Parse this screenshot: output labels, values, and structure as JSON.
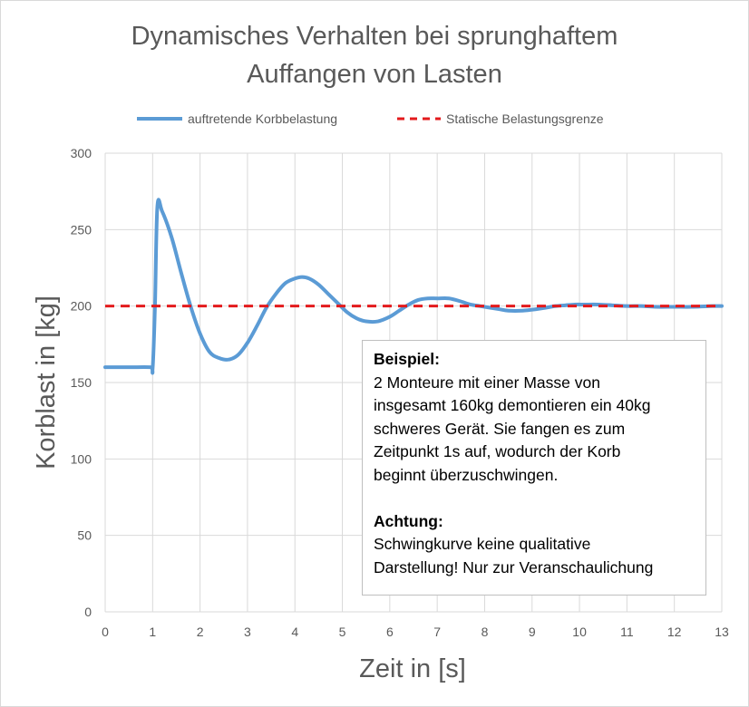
{
  "chart_data": {
    "type": "line",
    "title": [
      "Dynamisches Verhalten bei sprunghaftem",
      "Auffangen von Lasten"
    ],
    "xlabel": "Zeit in [s]",
    "ylabel": "Korblast in [kg]",
    "xlim": [
      0,
      13
    ],
    "ylim": [
      0,
      300
    ],
    "xticks": [
      "0",
      "1",
      "2",
      "3",
      "4",
      "5",
      "6",
      "7",
      "8",
      "9",
      "10",
      "11",
      "12",
      "13"
    ],
    "yticks": [
      "0",
      "50",
      "100",
      "150",
      "200",
      "250",
      "300"
    ],
    "grid": true,
    "legend_position": "top",
    "series": [
      {
        "name": "auftretende Korbbelastung",
        "color": "#5b9bd5",
        "style": "solid",
        "x": [
          0,
          0.5,
          0.95,
          1.0,
          1.05,
          1.1,
          1.2,
          1.4,
          1.6,
          1.8,
          2.0,
          2.2,
          2.4,
          2.6,
          2.8,
          3.0,
          3.2,
          3.4,
          3.6,
          3.8,
          4.0,
          4.15,
          4.3,
          4.5,
          4.7,
          4.9,
          5.1,
          5.3,
          5.5,
          5.75,
          6.0,
          6.2,
          6.4,
          6.6,
          6.8,
          7.0,
          7.25,
          7.5,
          7.7,
          7.9,
          8.1,
          8.3,
          8.5,
          8.8,
          9.1,
          9.3,
          9.5,
          9.7,
          9.9,
          10.1,
          10.4,
          10.7,
          11.0,
          11.3,
          11.6,
          12.0,
          12.4,
          12.8,
          13.0
        ],
        "y": [
          160,
          160,
          160,
          159,
          200,
          265,
          262,
          245,
          222,
          200,
          182,
          170,
          166,
          165,
          168,
          176,
          187,
          199,
          208,
          215,
          218,
          219,
          218,
          214,
          208,
          202,
          196,
          192,
          190,
          190,
          193,
          197,
          201,
          204,
          205,
          205,
          205,
          203,
          201,
          200,
          199,
          198,
          197,
          197,
          198,
          199,
          200,
          200.5,
          201,
          201,
          201,
          200.5,
          200,
          200,
          199.5,
          199.5,
          199.5,
          200,
          200
        ]
      },
      {
        "name": "Statische Belastungsgrenze",
        "color": "#e31a1c",
        "style": "dashed",
        "x": [
          0,
          13
        ],
        "y": [
          200,
          200
        ]
      }
    ]
  },
  "annotation": {
    "heading1": "Beispiel:",
    "body1": [
      "2 Monteure mit einer Masse von",
      "insgesamt 160kg demontieren ein 40kg",
      "schweres Gerät. Sie fangen es zum",
      "Zeitpunkt 1s auf, wodurch der Korb",
      "beginnt überzuschwingen."
    ],
    "heading2": "Achtung:",
    "body2": [
      "Schwingkurve keine qualitative",
      "Darstellung! Nur zur Veranschaulichung"
    ]
  }
}
